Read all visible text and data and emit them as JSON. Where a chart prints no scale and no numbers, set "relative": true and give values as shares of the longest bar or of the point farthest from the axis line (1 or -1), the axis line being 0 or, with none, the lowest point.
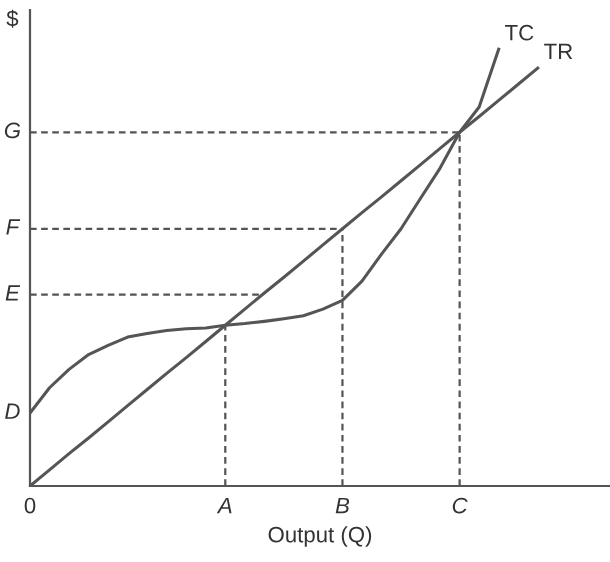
{
  "chart_data": {
    "type": "line",
    "relative": true,
    "xlabel": "Output (Q)",
    "ylabel": "$",
    "categories": [
      "0",
      null,
      null,
      null,
      null,
      null,
      null,
      null,
      null,
      null,
      "A",
      null,
      null,
      null,
      null,
      null,
      "B",
      null,
      null,
      null,
      null,
      null,
      "C",
      null,
      null,
      null,
      null,
      null,
      null,
      null
    ],
    "series": [
      {
        "name": "TC",
        "color": "#555555",
        "values": [
          0.167,
          0.225,
          0.267,
          0.301,
          0.322,
          0.341,
          0.349,
          0.356,
          0.36,
          0.362,
          0.368,
          0.372,
          0.377,
          0.383,
          0.39,
          0.405,
          0.425,
          0.469,
          0.531,
          0.589,
          0.659,
          0.728,
          0.81,
          0.868,
          1.0,
          null,
          null,
          null,
          null,
          null
        ]
      },
      {
        "name": "TR",
        "color": "#555555",
        "values": [
          0,
          0.037,
          0.074,
          0.11,
          0.147,
          0.184,
          0.221,
          0.258,
          0.294,
          0.331,
          0.368,
          0.405,
          0.442,
          0.478,
          0.515,
          0.552,
          0.589,
          0.626,
          0.662,
          0.699,
          0.736,
          0.773,
          0.81,
          0.846,
          0.883,
          0.92,
          0.957,
          null,
          null,
          null
        ]
      }
    ],
    "ref_lines": [
      {
        "axis": "y",
        "value": 0.438,
        "label": "E",
        "color": "#555555",
        "line_style": "dashed"
      },
      {
        "axis": "y",
        "value": 0.589,
        "label": "F",
        "color": "#555555",
        "line_style": "dashed"
      },
      {
        "axis": "y",
        "value": 0.81,
        "label": "G",
        "color": "#555555",
        "line_style": "dashed"
      },
      {
        "axis": "x",
        "value": "A",
        "color": "#555555",
        "line_style": "dashed"
      },
      {
        "axis": "x",
        "value": "B",
        "color": "#555555",
        "line_style": "dashed"
      },
      {
        "axis": "x",
        "value": "C",
        "color": "#555555",
        "line_style": "dashed"
      }
    ],
    "annotations": [
      "D"
    ],
    "grid": false,
    "legend": false,
    "marker": "none",
    "line_style": "solid"
  }
}
